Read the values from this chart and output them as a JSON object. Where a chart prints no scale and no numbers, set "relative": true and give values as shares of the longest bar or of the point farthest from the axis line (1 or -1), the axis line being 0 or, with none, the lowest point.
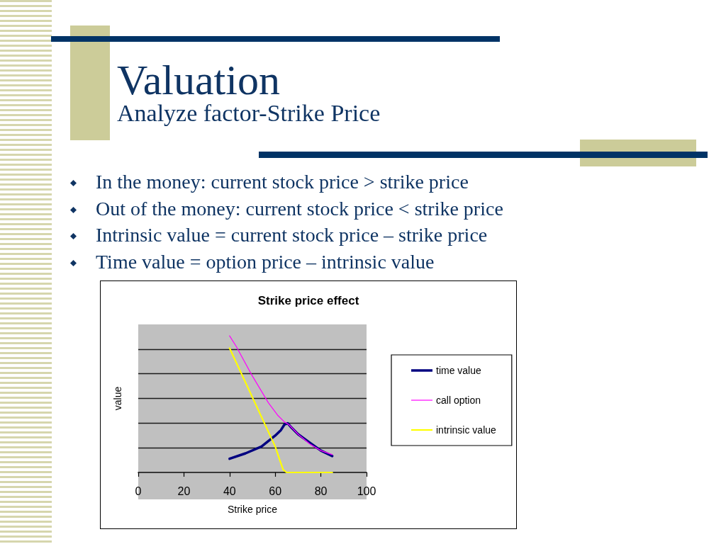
{
  "chart_data": {
    "type": "line",
    "title": "Strike price effect",
    "xlabel": "Strike price",
    "ylabel": "value",
    "annotations": [
      "Valuation",
      "Analyze factor-Strike Price",
      "In the money: current stock price > strike price",
      "Out of the money: current stock price < strike price",
      "Intrinsic value = current stock price – strike price",
      "Time value = option price – intrinsic value"
    ],
    "relative": true,
    "xlim": [
      0,
      100
    ],
    "xticks": [
      0,
      20,
      40,
      60,
      80,
      100
    ],
    "grid": "y",
    "legend": "right",
    "marker": "none",
    "line_style": "solid",
    "series": [
      {
        "name": "time value",
        "color": "#000080",
        "x": [
          40,
          47,
          54,
          60,
          62.5,
          64,
          65.5,
          67,
          70,
          75,
          80,
          85
        ],
        "values": [
          0.1,
          0.14,
          0.19,
          0.27,
          0.31,
          0.35,
          0.36,
          0.33,
          0.28,
          0.22,
          0.16,
          0.12
        ]
      },
      {
        "name": "call option",
        "color": "#ff00ff",
        "x": [
          40,
          43,
          49.5,
          57,
          61,
          64,
          66,
          70,
          75,
          80,
          85
        ],
        "values": [
          1,
          0.92,
          0.72,
          0.51,
          0.42,
          0.37,
          0.35,
          0.28,
          0.21,
          0.16,
          0.13
        ]
      },
      {
        "name": "intrinsic value",
        "color": "#ffff00",
        "x": [
          40,
          50,
          60,
          62,
          63.5,
          65,
          85
        ],
        "values": [
          0.91,
          0.55,
          0.19,
          0.09,
          0.02,
          0,
          0
        ]
      }
    ]
  }
}
